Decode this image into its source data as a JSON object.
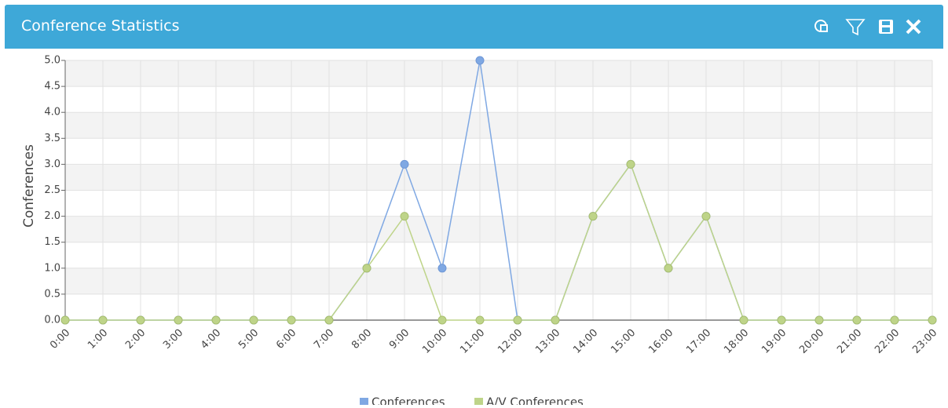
{
  "chart_data": {
    "type": "line",
    "title": "Conference Statistics",
    "ylabel": "Conferences",
    "categories": [
      "0:00",
      "1:00",
      "2:00",
      "3:00",
      "4:00",
      "5:00",
      "6:00",
      "7:00",
      "8:00",
      "9:00",
      "10:00",
      "11:00",
      "12:00",
      "13:00",
      "14:00",
      "15:00",
      "16:00",
      "17:00",
      "18:00",
      "19:00",
      "20:00",
      "21:00",
      "22:00",
      "23:00"
    ],
    "series": [
      {
        "name": "Conferences",
        "color": "#7fa8e3",
        "values": [
          0,
          0,
          0,
          0,
          0,
          0,
          0,
          0,
          1,
          3,
          1,
          5,
          0,
          0,
          2,
          3,
          1,
          2,
          0,
          0,
          0,
          0,
          0,
          0
        ]
      },
      {
        "name": "A/V Conferences",
        "color": "#bed489",
        "values": [
          0,
          0,
          0,
          0,
          0,
          0,
          0,
          0,
          1,
          2,
          0,
          0,
          0,
          0,
          2,
          3,
          1,
          2,
          0,
          0,
          0,
          0,
          0,
          0
        ]
      }
    ],
    "ylim": [
      0,
      5
    ],
    "yticks": [
      {
        "value": 0,
        "label": "0.0"
      },
      0.5,
      {
        "value": 1,
        "label": "1.0"
      },
      1.5,
      {
        "value": 2,
        "label": "2.0"
      },
      2.5,
      {
        "value": 3,
        "label": "3.0"
      },
      3.5,
      {
        "value": 4,
        "label": "4.0"
      },
      4.5,
      {
        "value": 5,
        "label": "5.0"
      }
    ],
    "grid": true,
    "legend": "bottom"
  }
}
